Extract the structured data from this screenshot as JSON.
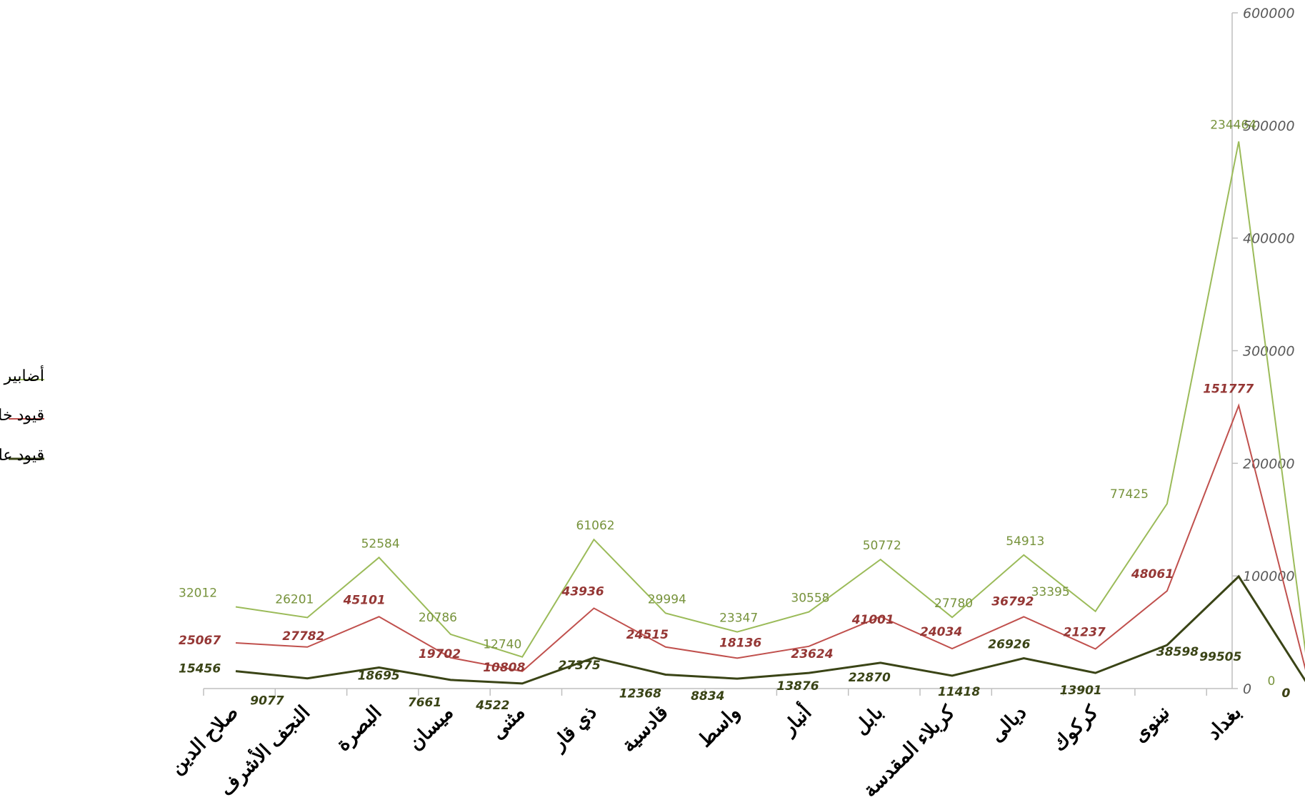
{
  "chart_data": {
    "type": "line",
    "title": "",
    "xlabel": "",
    "ylabel": "",
    "ylim": [
      0,
      600000
    ],
    "y_ticks": [
      "0",
      "100000",
      "200000",
      "300000",
      "400000",
      "500000",
      "600000"
    ],
    "y_axis_side": "right",
    "grid": false,
    "legend_position": "left",
    "categories": [
      "صلاح الدين",
      "النجف الأشرف",
      "البصرة",
      "ميسان",
      "مثنى",
      "ذي قار",
      "قادسية",
      "واسط",
      "أنبار",
      "بابل",
      "كربلاء المقدسة",
      "ديالى",
      "كركوك",
      "نينوى",
      "بغداد",
      ""
    ],
    "series": [
      {
        "name": "أضابير",
        "color": "#9bbb59",
        "label_color": "#77933c",
        "values": [
          72535,
          63060,
          116380,
          48149,
          28070,
          132373,
          66877,
          50317,
          68058,
          114643,
          63232,
          118631,
          68533,
          164084,
          485746,
          0
        ],
        "data_labels": [
          "32012",
          "26201",
          "52584",
          "20786",
          "12740",
          "61062",
          "29994",
          "23347",
          "30558",
          "50772",
          "27780",
          "54913",
          "33395",
          "77425",
          "234464",
          "0"
        ]
      },
      {
        "name": "قيود خلف",
        "color": "#c0504d",
        "label_color": "#953735",
        "values": [
          40523,
          36859,
          63796,
          27363,
          15330,
          71311,
          36883,
          26970,
          37500,
          63871,
          35452,
          63718,
          35138,
          86659,
          251282,
          0
        ],
        "data_labels": [
          "25067",
          "27782",
          "45101",
          "19702",
          "10808",
          "43936",
          "24515",
          "18136",
          "23624",
          "41001",
          "24034",
          "36792",
          "21237",
          "48061",
          "151777",
          "0"
        ]
      },
      {
        "name": "قيود على قيد الحياة",
        "color": "#3a4416",
        "label_color": "#3a4416",
        "values": [
          15456,
          9077,
          18695,
          7661,
          4522,
          27375,
          12368,
          8834,
          13876,
          22870,
          11418,
          26926,
          13901,
          38598,
          99505,
          0
        ],
        "data_labels": [
          "15456",
          "9077",
          "18695",
          "7661",
          "4522",
          "27375",
          "12368",
          "8834",
          "13876",
          "22870",
          "11418",
          "26926",
          "13901",
          "38598",
          "99505",
          "0"
        ]
      }
    ]
  }
}
